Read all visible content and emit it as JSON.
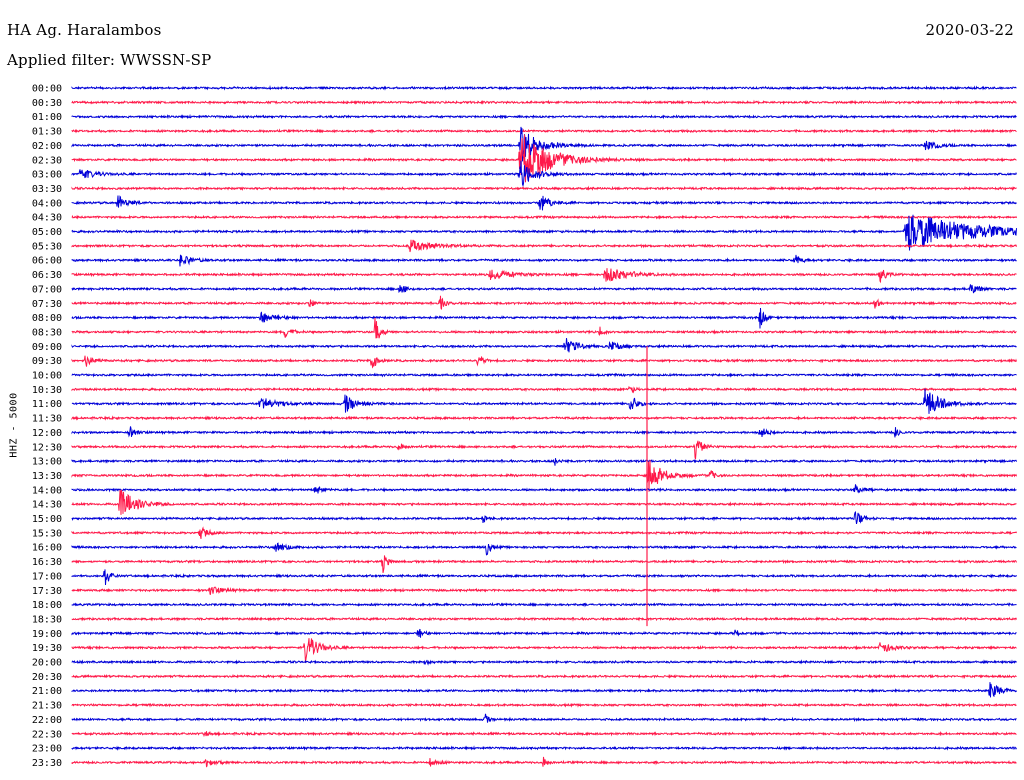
{
  "header": {
    "station": "HA Ag. Haralambos",
    "date": "2020-03-22",
    "filter": "Applied filter: WWSSN-SP"
  },
  "chart_data": {
    "type": "line",
    "title": "HA Ag. Haralambos",
    "subtitle": "Applied filter: WWSSN-SP",
    "date": "2020-03-22",
    "ylabel": "HHZ - 5000",
    "xlabel": "",
    "trace_colors": [
      "#0000d8",
      "#ff1a4a"
    ],
    "rows": [
      {
        "time": "00:00",
        "events": []
      },
      {
        "time": "00:30",
        "events": []
      },
      {
        "time": "01:00",
        "events": []
      },
      {
        "time": "01:30",
        "events": []
      },
      {
        "time": "02:00",
        "events": []
      },
      {
        "time": "02:30",
        "events": []
      },
      {
        "time": "03:00",
        "events": []
      },
      {
        "time": "03:30",
        "events": []
      },
      {
        "time": "04:00",
        "events": []
      },
      {
        "time": "04:30",
        "events": []
      },
      {
        "time": "05:00",
        "events": []
      },
      {
        "time": "05:30",
        "events": []
      },
      {
        "time": "06:00",
        "events": []
      },
      {
        "time": "06:30",
        "events": []
      },
      {
        "time": "07:00",
        "events": []
      },
      {
        "time": "07:30",
        "events": []
      },
      {
        "time": "08:00",
        "events": []
      },
      {
        "time": "08:30",
        "events": []
      },
      {
        "time": "09:00",
        "events": []
      },
      {
        "time": "09:30",
        "events": []
      },
      {
        "time": "10:00",
        "events": []
      },
      {
        "time": "10:30",
        "events": []
      },
      {
        "time": "11:00",
        "events": []
      },
      {
        "time": "11:30",
        "events": []
      },
      {
        "time": "12:00",
        "events": []
      },
      {
        "time": "12:30",
        "events": []
      },
      {
        "time": "13:00",
        "events": []
      },
      {
        "time": "13:30",
        "events": []
      },
      {
        "time": "14:00",
        "events": []
      },
      {
        "time": "14:30",
        "events": []
      },
      {
        "time": "15:00",
        "events": []
      },
      {
        "time": "15:30",
        "events": []
      },
      {
        "time": "16:00",
        "events": []
      },
      {
        "time": "16:30",
        "events": []
      },
      {
        "time": "17:00",
        "events": []
      },
      {
        "time": "17:30",
        "events": []
      },
      {
        "time": "18:00",
        "events": []
      },
      {
        "time": "18:30",
        "events": []
      },
      {
        "time": "19:00",
        "events": []
      },
      {
        "time": "19:30",
        "events": []
      },
      {
        "time": "20:00",
        "events": []
      },
      {
        "time": "20:30",
        "events": []
      },
      {
        "time": "21:00",
        "events": []
      },
      {
        "time": "21:30",
        "events": []
      },
      {
        "time": "22:00",
        "events": []
      },
      {
        "time": "22:30",
        "events": []
      },
      {
        "time": "23:00",
        "events": []
      },
      {
        "time": "23:30",
        "events": []
      }
    ]
  }
}
